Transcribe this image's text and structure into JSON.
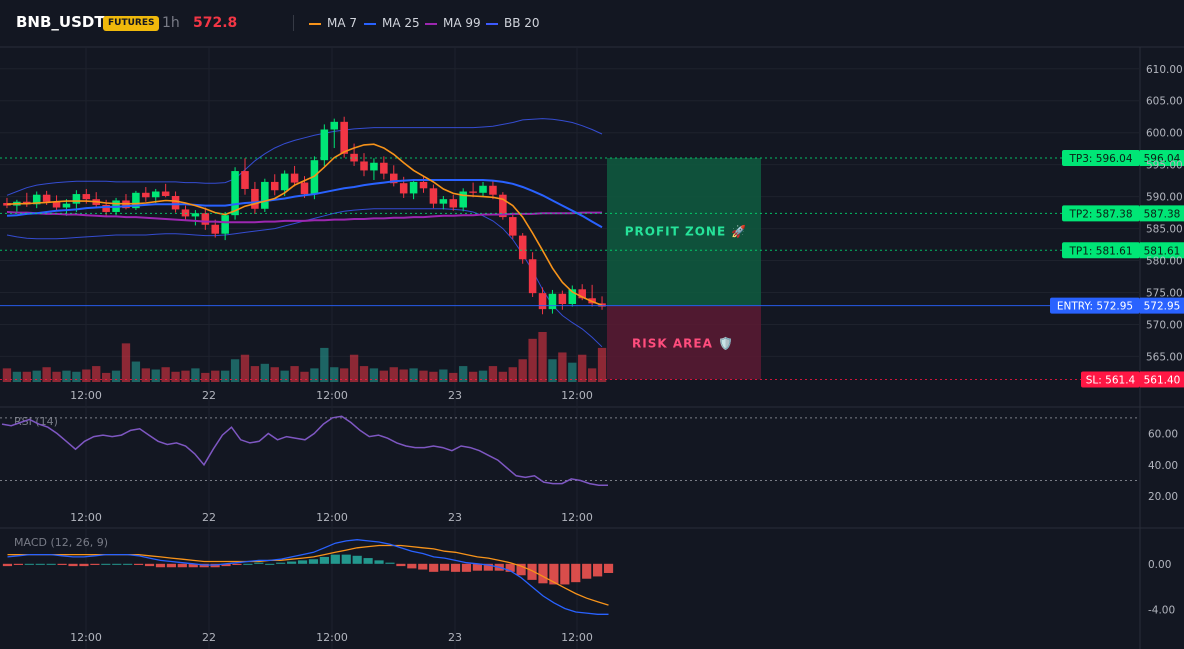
{
  "header": {
    "symbol": "BNB_USDT",
    "badge": "FUTURES",
    "timeframe": "1h",
    "price": "572.8",
    "legend": [
      {
        "label": "MA 7",
        "color": "#f7931a"
      },
      {
        "label": "MA 25",
        "color": "#2962ff"
      },
      {
        "label": "MA 99",
        "color": "#9c27b0"
      },
      {
        "label": "BB 20",
        "color": "#3d5afe"
      }
    ]
  },
  "time_labels": [
    "12:00",
    "22",
    "12:00",
    "23",
    "12:00"
  ],
  "rsi_label": "RSI (14)",
  "macd_label": "MACD (12, 26, 9)",
  "zones": {
    "profit": "PROFIT ZONE 🚀",
    "risk": "RISK AREA 🛡️"
  },
  "tags": [
    {
      "label": "TP3: 596.04",
      "value": "596.04",
      "color": "#00e676"
    },
    {
      "label": "TP2: 587.38",
      "value": "587.38",
      "color": "#00e676"
    },
    {
      "label": "TP1: 581.61",
      "value": "581.61",
      "color": "#00e676"
    },
    {
      "label": "ENTRY: 572.95",
      "value": "572.95",
      "color": "#2962ff"
    },
    {
      "label": "SL: 561.4",
      "value": "561.40",
      "color": "#ff1744"
    }
  ],
  "colors": {
    "up": "#26a69a",
    "upBright": "#00e676",
    "down": "#f23645"
  },
  "chart_data": [
    {
      "type": "candlestick",
      "series_names": [
        "MA 7",
        "MA 25",
        "MA 99",
        "BB 20"
      ],
      "ylim": [
        561,
        612
      ],
      "yticks": [
        "610.00",
        "605.00",
        "600.00",
        "595.00",
        "590.00",
        "585.00",
        "580.00",
        "575.00",
        "570.00",
        "565.00"
      ],
      "yticks_values": [
        610,
        605,
        600,
        595,
        590,
        585,
        580,
        575,
        570,
        565
      ],
      "levels": {
        "tp3": 596.04,
        "tp2": 587.38,
        "tp1": 581.61,
        "entry": 572.95,
        "sl": 561.4
      },
      "candles": [
        [
          589.0,
          589.8,
          588.2,
          588.6
        ],
        [
          588.6,
          589.5,
          587.6,
          589.2
        ],
        [
          589.2,
          590.6,
          588.4,
          588.8
        ],
        [
          588.8,
          590.8,
          588.2,
          590.3
        ],
        [
          590.3,
          590.9,
          588.7,
          589.2
        ],
        [
          589.2,
          590.2,
          587.9,
          588.3
        ],
        [
          588.3,
          589.6,
          587.0,
          588.9
        ],
        [
          588.9,
          591.0,
          587.6,
          590.4
        ],
        [
          590.4,
          591.2,
          588.9,
          589.6
        ],
        [
          589.6,
          590.7,
          588.2,
          588.7
        ],
        [
          588.7,
          589.5,
          586.8,
          587.6
        ],
        [
          587.6,
          589.8,
          587.1,
          589.4
        ],
        [
          589.4,
          590.4,
          588.0,
          588.2
        ],
        [
          588.2,
          590.9,
          587.9,
          590.6
        ],
        [
          590.6,
          591.5,
          589.2,
          589.9
        ],
        [
          589.9,
          591.2,
          589.0,
          590.8
        ],
        [
          590.8,
          592.0,
          589.9,
          590.1
        ],
        [
          590.1,
          590.8,
          587.5,
          588.0
        ],
        [
          588.0,
          588.6,
          586.3,
          586.9
        ],
        [
          586.9,
          587.9,
          585.5,
          587.4
        ],
        [
          587.4,
          588.3,
          584.8,
          585.6
        ],
        [
          585.6,
          586.4,
          583.6,
          584.2
        ],
        [
          584.2,
          587.6,
          583.2,
          587.1
        ],
        [
          587.1,
          594.6,
          586.4,
          594.0
        ],
        [
          594.0,
          596.0,
          590.3,
          591.2
        ],
        [
          591.2,
          592.3,
          587.3,
          588.1
        ],
        [
          588.1,
          592.8,
          587.6,
          592.3
        ],
        [
          592.3,
          593.5,
          590.2,
          591.0
        ],
        [
          591.0,
          594.1,
          590.1,
          593.6
        ],
        [
          593.6,
          594.8,
          591.6,
          592.2
        ],
        [
          592.2,
          593.2,
          589.8,
          590.4
        ],
        [
          590.4,
          596.3,
          589.6,
          595.7
        ],
        [
          595.7,
          601.3,
          594.8,
          600.5
        ],
        [
          600.5,
          602.2,
          597.6,
          601.7
        ],
        [
          601.7,
          602.5,
          596.1,
          596.7
        ],
        [
          596.7,
          598.3,
          594.8,
          595.5
        ],
        [
          595.5,
          596.8,
          593.2,
          594.1
        ],
        [
          594.1,
          596.0,
          592.6,
          595.3
        ],
        [
          595.3,
          596.3,
          592.7,
          593.6
        ],
        [
          593.6,
          594.9,
          591.6,
          592.1
        ],
        [
          592.1,
          593.1,
          589.8,
          590.5
        ],
        [
          590.5,
          592.7,
          589.6,
          592.3
        ],
        [
          592.3,
          593.1,
          590.6,
          591.3
        ],
        [
          591.3,
          591.9,
          588.2,
          588.9
        ],
        [
          588.9,
          590.1,
          588.0,
          589.6
        ],
        [
          589.6,
          590.3,
          587.8,
          588.3
        ],
        [
          588.3,
          591.3,
          587.7,
          590.8
        ],
        [
          590.8,
          592.2,
          589.9,
          590.6
        ],
        [
          590.6,
          592.3,
          590.1,
          591.7
        ],
        [
          591.7,
          592.4,
          589.6,
          590.3
        ],
        [
          590.3,
          590.7,
          586.4,
          586.8
        ],
        [
          586.8,
          587.5,
          583.4,
          583.9
        ],
        [
          583.9,
          584.3,
          579.5,
          580.2
        ],
        [
          580.2,
          581.3,
          574.3,
          574.9
        ],
        [
          574.9,
          575.8,
          571.6,
          572.4
        ],
        [
          572.4,
          575.4,
          571.7,
          574.8
        ],
        [
          574.8,
          575.3,
          572.3,
          573.2
        ],
        [
          573.2,
          576.1,
          572.8,
          575.5
        ],
        [
          575.5,
          576.3,
          573.8,
          574.1
        ],
        [
          574.1,
          576.2,
          572.8,
          573.3
        ],
        [
          573.3,
          574.4,
          572.3,
          572.8
        ]
      ],
      "ma7": [
        588.8,
        588.9,
        588.9,
        589.0,
        589.1,
        589.2,
        589.3,
        589.3,
        589.3,
        589.2,
        589.0,
        588.9,
        588.9,
        588.9,
        589.0,
        589.2,
        589.4,
        589.3,
        589.0,
        588.6,
        588.1,
        587.5,
        587.2,
        587.8,
        588.5,
        588.9,
        589.3,
        589.7,
        590.6,
        591.8,
        592.5,
        593.2,
        594.6,
        596.1,
        597.0,
        597.6,
        598.1,
        598.2,
        597.6,
        596.6,
        595.3,
        594.1,
        593.2,
        592.3,
        591.2,
        590.5,
        590.2,
        590.1,
        590.0,
        589.9,
        589.6,
        588.6,
        586.8,
        584.3,
        581.6,
        578.8,
        576.6,
        575.1,
        574.3,
        573.6,
        573.0
      ],
      "ma25": [
        587.0,
        587.1,
        587.3,
        587.4,
        587.6,
        587.8,
        587.9,
        588.0,
        588.2,
        588.3,
        588.4,
        588.4,
        588.5,
        588.6,
        588.7,
        588.8,
        588.8,
        588.8,
        588.8,
        588.7,
        588.6,
        588.6,
        588.6,
        588.8,
        589.0,
        589.1,
        589.3,
        589.5,
        589.7,
        590.0,
        590.2,
        590.4,
        590.7,
        591.0,
        591.3,
        591.5,
        591.8,
        592.0,
        592.2,
        592.4,
        592.5,
        592.6,
        592.6,
        592.6,
        592.6,
        592.6,
        592.6,
        592.6,
        592.6,
        592.5,
        592.3,
        592.0,
        591.5,
        590.9,
        590.2,
        589.4,
        588.6,
        587.8,
        587.0,
        586.1,
        585.2
      ],
      "ma99": [
        587.6,
        587.5,
        587.5,
        587.4,
        587.3,
        587.3,
        587.2,
        587.2,
        587.1,
        587.0,
        586.9,
        586.9,
        586.8,
        586.8,
        586.7,
        586.6,
        586.5,
        586.4,
        586.3,
        586.2,
        586.1,
        586.1,
        586.0,
        586.0,
        586.0,
        586.0,
        586.1,
        586.1,
        586.2,
        586.2,
        586.2,
        586.3,
        586.3,
        586.4,
        586.4,
        586.5,
        586.5,
        586.6,
        586.6,
        586.7,
        586.7,
        586.8,
        586.8,
        586.9,
        587.0,
        587.0,
        587.1,
        587.1,
        587.2,
        587.2,
        587.2,
        587.3,
        587.3,
        587.3,
        587.4,
        587.4,
        587.4,
        587.4,
        587.5,
        587.5,
        587.5
      ],
      "bb_upper": [
        590.2,
        590.8,
        591.4,
        591.8,
        592.0,
        592.2,
        592.3,
        592.4,
        592.4,
        592.4,
        592.4,
        592.3,
        592.3,
        592.3,
        592.3,
        592.3,
        592.3,
        592.3,
        592.2,
        592.2,
        592.1,
        592.1,
        592.2,
        592.8,
        594.2,
        595.6,
        596.7,
        597.6,
        598.3,
        598.8,
        599.2,
        599.6,
        599.9,
        600.2,
        600.4,
        600.6,
        600.7,
        600.8,
        600.8,
        600.8,
        600.8,
        600.8,
        600.8,
        600.8,
        600.8,
        600.8,
        600.8,
        600.8,
        600.9,
        601.0,
        601.3,
        601.6,
        602.0,
        602.1,
        602.2,
        602.1,
        601.9,
        601.6,
        601.1,
        600.5,
        599.8
      ],
      "bb_lower": [
        584.0,
        583.7,
        583.5,
        583.4,
        583.4,
        583.4,
        583.5,
        583.6,
        583.7,
        583.8,
        583.9,
        584.0,
        584.0,
        584.0,
        584.0,
        584.1,
        584.2,
        584.2,
        584.1,
        584.0,
        583.9,
        583.9,
        584.0,
        584.2,
        584.4,
        584.6,
        584.8,
        585.0,
        585.4,
        585.8,
        586.2,
        586.6,
        587.0,
        587.4,
        587.7,
        587.9,
        588.0,
        588.1,
        588.1,
        588.1,
        588.1,
        588.1,
        588.1,
        588.1,
        588.1,
        588.0,
        587.9,
        587.6,
        587.0,
        586.2,
        585.0,
        583.3,
        581.0,
        578.4,
        575.5,
        573.0,
        571.4,
        570.3,
        569.3,
        568.0,
        566.5
      ],
      "volume": [
        12,
        9,
        9,
        10,
        13,
        9,
        10,
        9,
        11,
        14,
        8,
        10,
        34,
        18,
        12,
        11,
        13,
        9,
        10,
        12,
        8,
        10,
        10,
        20,
        24,
        14,
        16,
        13,
        10,
        14,
        9,
        12,
        30,
        13,
        12,
        24,
        14,
        12,
        10,
        13,
        11,
        12,
        10,
        9,
        11,
        8,
        14,
        9,
        10,
        14,
        9,
        13,
        20,
        38,
        44,
        20,
        26,
        17,
        24,
        12,
        30
      ]
    },
    {
      "type": "line",
      "series_name": "RSI (14)",
      "ylim": [
        15,
        75
      ],
      "yticks_values": [
        60,
        40,
        20
      ],
      "yticks": [
        "60.00",
        "40.00",
        "20.00"
      ],
      "bands": [
        70,
        30
      ],
      "values": [
        66,
        65,
        67,
        69,
        66,
        64,
        60,
        55,
        50,
        55,
        58,
        59,
        58,
        59,
        62,
        63,
        59,
        55,
        53,
        54,
        52,
        47,
        40,
        50,
        59,
        64,
        56,
        54,
        55,
        60,
        56,
        58,
        57,
        56,
        60,
        66,
        70,
        71,
        67,
        62,
        58,
        59,
        57,
        54,
        52,
        51,
        51,
        52,
        51,
        49,
        52,
        51,
        49,
        46,
        43,
        38,
        33,
        32,
        33,
        29,
        28,
        28,
        31,
        30,
        28,
        27,
        27
      ]
    },
    {
      "type": "histogram+line",
      "series_name": "MACD (12, 26, 9)",
      "ylim": [
        -4.9,
        2.6
      ],
      "yticks_values": [
        0,
        -4
      ],
      "yticks": [
        "0.00",
        "-4.00"
      ],
      "macd": [
        0.6,
        0.7,
        0.8,
        0.8,
        0.8,
        0.7,
        0.6,
        0.6,
        0.7,
        0.8,
        0.8,
        0.8,
        0.7,
        0.5,
        0.3,
        0.2,
        0.1,
        0.0,
        -0.1,
        -0.1,
        0.0,
        0.1,
        0.2,
        0.3,
        0.3,
        0.4,
        0.6,
        0.8,
        1.0,
        1.4,
        1.8,
        2.0,
        2.1,
        2.0,
        1.9,
        1.7,
        1.4,
        1.1,
        0.9,
        0.6,
        0.5,
        0.3,
        0.1,
        0.0,
        -0.1,
        -0.3,
        -0.6,
        -1.2,
        -2.0,
        -2.8,
        -3.4,
        -3.9,
        -4.2,
        -4.3,
        -4.4,
        -4.4
      ],
      "signal": [
        0.8,
        0.8,
        0.8,
        0.8,
        0.8,
        0.8,
        0.8,
        0.8,
        0.8,
        0.8,
        0.8,
        0.8,
        0.8,
        0.7,
        0.6,
        0.5,
        0.4,
        0.3,
        0.2,
        0.2,
        0.2,
        0.2,
        0.2,
        0.2,
        0.3,
        0.3,
        0.4,
        0.5,
        0.6,
        0.8,
        1.0,
        1.2,
        1.4,
        1.5,
        1.6,
        1.6,
        1.6,
        1.5,
        1.4,
        1.3,
        1.1,
        1.0,
        0.8,
        0.6,
        0.5,
        0.3,
        0.1,
        -0.2,
        -0.6,
        -1.1,
        -1.6,
        -2.1,
        -2.6,
        -3.0,
        -3.3,
        -3.6
      ],
      "histogram": [
        -0.2,
        -0.1,
        0.0,
        0.0,
        0.0,
        -0.1,
        -0.2,
        -0.2,
        -0.1,
        0.0,
        0.0,
        0.0,
        -0.1,
        -0.2,
        -0.3,
        -0.3,
        -0.3,
        -0.3,
        -0.3,
        -0.3,
        -0.2,
        -0.1,
        0.0,
        0.1,
        0.0,
        0.1,
        0.2,
        0.3,
        0.4,
        0.6,
        0.8,
        0.8,
        0.7,
        0.5,
        0.3,
        0.1,
        -0.2,
        -0.4,
        -0.5,
        -0.7,
        -0.6,
        -0.7,
        -0.7,
        -0.6,
        -0.6,
        -0.6,
        -0.7,
        -1.0,
        -1.4,
        -1.7,
        -1.8,
        -1.8,
        -1.6,
        -1.3,
        -1.1,
        -0.8
      ]
    }
  ]
}
